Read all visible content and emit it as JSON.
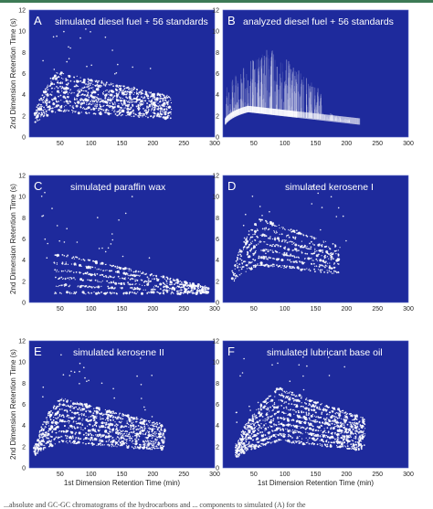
{
  "colors": {
    "plot_bg": "#1e2a9c",
    "dots": "#ffffff",
    "frame": "#5a6cc8"
  },
  "chart_data": [
    {
      "type": "scatter",
      "panel": "A",
      "title": "simulated diesel fuel + 56 standards",
      "xlabel": "1st Dimension Retention Time (min)",
      "ylabel": "2nd Dimension Retention Time (s)",
      "xlim": [
        0,
        300
      ],
      "ylim": [
        0,
        12
      ],
      "xticks": [
        "50",
        "100",
        "150",
        "200",
        "250",
        "300"
      ],
      "yticks": [
        "0",
        "2",
        "4",
        "6",
        "8",
        "10",
        "12"
      ],
      "grid": false,
      "pattern": "sim-diesel"
    },
    {
      "type": "heatmap",
      "panel": "B",
      "title": "analyzed diesel fuel + 56 standards",
      "xlabel": "1st Dimension Retention Time (min)",
      "ylabel": "2nd Dimension Retention Time (s)",
      "xlim": [
        0,
        300
      ],
      "ylim": [
        0,
        12
      ],
      "xticks": [
        "50",
        "100",
        "150",
        "200",
        "250",
        "300"
      ],
      "yticks": [
        "0",
        "2",
        "4",
        "6",
        "8",
        "10",
        "12"
      ],
      "grid": false,
      "pattern": "analyzed"
    },
    {
      "type": "scatter",
      "panel": "C",
      "title": "simulated paraffin wax",
      "xlabel": "1st Dimension Retention Time (min)",
      "ylabel": "2nd Dimension Retention Time (s)",
      "xlim": [
        0,
        300
      ],
      "ylim": [
        0,
        12
      ],
      "xticks": [
        "50",
        "100",
        "150",
        "200",
        "250",
        "300"
      ],
      "yticks": [
        "0",
        "2",
        "4",
        "6",
        "8",
        "10",
        "12"
      ],
      "grid": false,
      "pattern": "wax"
    },
    {
      "type": "scatter",
      "panel": "D",
      "title": "simulated kerosene I",
      "xlabel": "1st Dimension Retention Time (min)",
      "ylabel": "2nd Dimension Retention Time (s)",
      "xlim": [
        0,
        300
      ],
      "ylim": [
        0,
        12
      ],
      "xticks": [
        "50",
        "100",
        "150",
        "200",
        "250",
        "300"
      ],
      "yticks": [
        "0",
        "2",
        "4",
        "6",
        "8",
        "10",
        "12"
      ],
      "grid": false,
      "pattern": "kerosene1"
    },
    {
      "type": "scatter",
      "panel": "E",
      "title": "simulated kerosene II",
      "xlabel": "1st Dimension Retention Time (min)",
      "ylabel": "2nd Dimension Retention Time (s)",
      "xlim": [
        0,
        300
      ],
      "ylim": [
        0,
        12
      ],
      "xticks": [
        "50",
        "100",
        "150",
        "200",
        "250",
        "300"
      ],
      "yticks": [
        "0",
        "2",
        "4",
        "6",
        "8",
        "10",
        "12"
      ],
      "grid": false,
      "pattern": "kerosene2"
    },
    {
      "type": "scatter",
      "panel": "F",
      "title": "simulated lubricant base oil",
      "xlabel": "1st Dimension Retention Time (min)",
      "ylabel": "2nd Dimension Retention Time (s)",
      "xlim": [
        0,
        300
      ],
      "ylim": [
        0,
        12
      ],
      "xticks": [
        "50",
        "100",
        "150",
        "200",
        "250",
        "300"
      ],
      "yticks": [
        "0",
        "2",
        "4",
        "6",
        "8",
        "10",
        "12"
      ],
      "grid": false,
      "pattern": "lube"
    }
  ],
  "caption": "...absolute and GC-GC chromatograms of the hydrocarbons and ... components to simulated (A) for the"
}
